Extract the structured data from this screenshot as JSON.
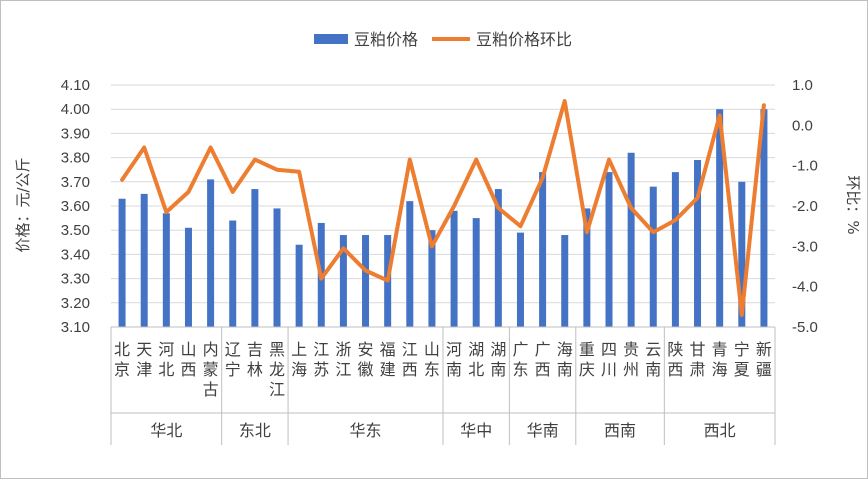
{
  "chart_data": {
    "type": "bar+line",
    "legend": {
      "position": "top",
      "bar_label": "豆粕价格",
      "line_label": "豆粕价格环比"
    },
    "colors": {
      "bar": "#4472C4",
      "line": "#ED7D31",
      "right_axis_text": "#C00000",
      "grid": "#d9d9d9"
    },
    "y_left": {
      "label": "价格：元/公斤",
      "ticks": [
        "3.10",
        "3.20",
        "3.30",
        "3.40",
        "3.50",
        "3.60",
        "3.70",
        "3.80",
        "3.90",
        "4.00",
        "4.10"
      ],
      "lim": [
        3.1,
        4.1
      ]
    },
    "y_right": {
      "label": "环比：%",
      "ticks": [
        "1.0",
        "0.0",
        "-1.0",
        "-2.0",
        "-3.0",
        "-4.0",
        "-5.0"
      ],
      "lim": [
        -5.0,
        1.0
      ]
    },
    "categories": [
      "北京",
      "天津",
      "河北",
      "山西",
      "内蒙古",
      "辽宁",
      "吉林",
      "黑龙江",
      "上海",
      "江苏",
      "浙江",
      "安徽",
      "福建",
      "江西",
      "山东",
      "河南",
      "湖北",
      "湖南",
      "广东",
      "广西",
      "海南",
      "重庆",
      "四川",
      "贵州",
      "云南",
      "陕西",
      "甘肃",
      "青海",
      "宁夏",
      "新疆"
    ],
    "regions": [
      {
        "name": "华北",
        "count": 5
      },
      {
        "name": "东北",
        "count": 3
      },
      {
        "name": "华东",
        "count": 7
      },
      {
        "name": "华中",
        "count": 3
      },
      {
        "name": "华南",
        "count": 3
      },
      {
        "name": "西南",
        "count": 4
      },
      {
        "name": "西北",
        "count": 5
      }
    ],
    "series": [
      {
        "name": "豆粕价格",
        "type": "bar",
        "axis": "left",
        "values": [
          3.63,
          3.65,
          3.57,
          3.51,
          3.71,
          3.54,
          3.67,
          3.59,
          3.44,
          3.53,
          3.48,
          3.48,
          3.48,
          3.62,
          3.5,
          3.58,
          3.55,
          3.67,
          3.49,
          3.74,
          3.48,
          3.59,
          3.74,
          3.82,
          3.68,
          3.74,
          3.79,
          4.0,
          3.7,
          4.0
        ]
      },
      {
        "name": "豆粕价格环比",
        "type": "line",
        "axis": "right",
        "values": [
          -1.35,
          -0.55,
          -2.15,
          -1.65,
          -0.55,
          -1.65,
          -0.85,
          -1.1,
          -1.15,
          -3.8,
          -3.05,
          -3.6,
          -3.85,
          -0.85,
          -3.0,
          -2.0,
          -0.85,
          -2.05,
          -2.5,
          -1.3,
          0.6,
          -2.65,
          -0.85,
          -2.05,
          -2.65,
          -2.35,
          -1.8,
          0.25,
          -4.7,
          0.5
        ]
      }
    ]
  }
}
